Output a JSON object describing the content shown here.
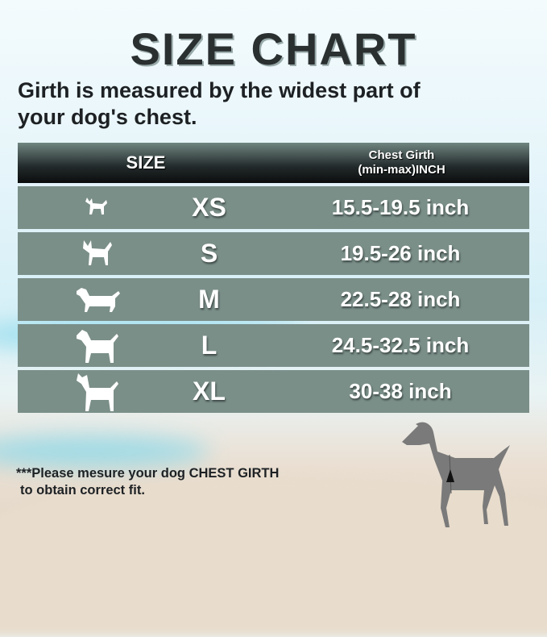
{
  "title": "SIZE CHART",
  "intro": [
    "Girth is measured by the widest part of",
    "your dog's chest."
  ],
  "table": {
    "headers": {
      "size": "SIZE",
      "girth_line1": "Chest Girth",
      "girth_line2": "(min-max)INCH"
    },
    "rows": [
      {
        "icon": "chihuahua-icon",
        "size": "XS",
        "girth": "15.5-19.5 inch"
      },
      {
        "icon": "small-dog-icon",
        "size": "S",
        "girth": "19.5-26 inch"
      },
      {
        "icon": "dachshund-icon",
        "size": "M",
        "girth": "22.5-28 inch"
      },
      {
        "icon": "medium-dog-icon",
        "size": "L",
        "girth": "24.5-32.5 inch"
      },
      {
        "icon": "great-dane-icon",
        "size": "XL",
        "girth": "30-38 inch"
      }
    ]
  },
  "note": [
    "***Please mesure your dog CHEST GIRTH",
    "to obtain correct fit."
  ],
  "colors": {
    "row": "#7b8f89",
    "header": "#0b0d0d",
    "dog": "#7a7a7a"
  }
}
